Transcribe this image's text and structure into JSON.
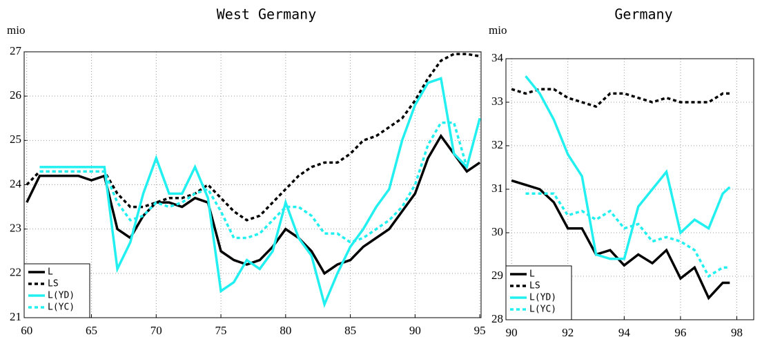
{
  "chart_data": [
    {
      "type": "line",
      "title": "West Germany",
      "y_label": "mio",
      "x": [
        60,
        61,
        62,
        63,
        64,
        65,
        66,
        67,
        68,
        69,
        70,
        71,
        72,
        73,
        74,
        75,
        76,
        77,
        78,
        79,
        80,
        81,
        82,
        83,
        84,
        85,
        86,
        87,
        88,
        89,
        90,
        91,
        92,
        93,
        94,
        95
      ],
      "series": [
        {
          "name": "L",
          "color": "#000000",
          "dash": false,
          "values": [
            23.6,
            24.2,
            24.2,
            24.2,
            24.2,
            24.1,
            24.2,
            23.0,
            22.8,
            23.3,
            23.6,
            23.6,
            23.5,
            23.7,
            23.6,
            22.5,
            22.3,
            22.2,
            22.3,
            22.6,
            23.0,
            22.8,
            22.5,
            22.0,
            22.2,
            22.3,
            22.6,
            22.8,
            23.0,
            23.4,
            23.8,
            24.6,
            25.1,
            24.7,
            24.3,
            24.5
          ]
        },
        {
          "name": "LS",
          "color": "#000000",
          "dash": true,
          "values": [
            24.0,
            24.3,
            24.3,
            24.3,
            24.3,
            24.3,
            24.3,
            23.8,
            23.5,
            23.5,
            23.6,
            23.7,
            23.7,
            23.8,
            24.0,
            23.7,
            23.4,
            23.2,
            23.3,
            23.6,
            23.9,
            24.2,
            24.4,
            24.5,
            24.5,
            24.7,
            25.0,
            25.1,
            25.3,
            25.5,
            25.9,
            26.4,
            26.8,
            26.95,
            26.95,
            26.9
          ]
        },
        {
          "name": "L(YD)",
          "color": "#22f0f0",
          "dash": false,
          "values": [
            null,
            24.4,
            24.4,
            24.4,
            24.4,
            24.4,
            24.4,
            22.1,
            22.7,
            23.8,
            24.6,
            23.8,
            23.8,
            24.4,
            23.7,
            21.6,
            21.8,
            22.3,
            22.1,
            22.5,
            23.6,
            22.8,
            22.4,
            21.3,
            22.0,
            22.6,
            23.0,
            23.5,
            23.9,
            25.0,
            25.8,
            26.3,
            26.4,
            24.7,
            24.4,
            25.5
          ]
        },
        {
          "name": "L(YC)",
          "color": "#22f0f0",
          "dash": true,
          "values": [
            null,
            24.3,
            24.3,
            24.3,
            24.3,
            24.3,
            24.3,
            23.6,
            23.2,
            23.3,
            23.6,
            23.5,
            23.6,
            23.8,
            23.9,
            23.4,
            22.8,
            22.8,
            22.9,
            23.2,
            23.5,
            23.5,
            23.3,
            22.9,
            22.9,
            22.7,
            22.8,
            23.0,
            23.2,
            23.5,
            24.0,
            24.9,
            25.4,
            25.4,
            24.4,
            null
          ]
        }
      ],
      "xlim": [
        59.8,
        95.1
      ],
      "xticks": [
        60,
        65,
        70,
        75,
        80,
        85,
        90,
        95
      ],
      "ylim": [
        21,
        27
      ],
      "yticks": [
        21,
        22,
        23,
        24,
        25,
        26,
        27
      ],
      "grid": true,
      "legend": "lower-left"
    },
    {
      "type": "line",
      "title": "Germany",
      "y_label": "mio",
      "x": [
        90,
        90.5,
        91,
        91.5,
        92,
        92.5,
        93,
        93.5,
        94,
        94.5,
        95,
        95.5,
        96,
        96.5,
        97,
        97.5,
        97.75
      ],
      "series": [
        {
          "name": "L",
          "color": "#000000",
          "dash": false,
          "values": [
            31.2,
            31.1,
            31.0,
            30.7,
            30.1,
            30.1,
            29.5,
            29.6,
            29.25,
            29.5,
            29.3,
            29.6,
            28.95,
            29.2,
            28.5,
            28.85,
            28.85
          ]
        },
        {
          "name": "LS",
          "color": "#000000",
          "dash": true,
          "values": [
            33.3,
            33.2,
            33.3,
            33.3,
            33.1,
            33.0,
            32.9,
            33.2,
            33.2,
            33.1,
            33.0,
            33.1,
            33.0,
            33.0,
            33.0,
            33.2,
            33.2
          ]
        },
        {
          "name": "L(YD)",
          "color": "#22f0f0",
          "dash": false,
          "values": [
            null,
            33.6,
            33.2,
            32.6,
            31.8,
            31.3,
            29.5,
            29.4,
            29.4,
            30.6,
            31.0,
            31.4,
            30.0,
            30.3,
            30.1,
            30.9,
            31.05
          ]
        },
        {
          "name": "L(YC)",
          "color": "#22f0f0",
          "dash": true,
          "values": [
            null,
            30.9,
            30.9,
            30.9,
            30.4,
            30.5,
            30.3,
            30.5,
            30.1,
            30.2,
            29.8,
            29.9,
            29.8,
            29.6,
            29.0,
            29.2,
            29.2
          ]
        }
      ],
      "xlim": [
        89.8,
        98.6
      ],
      "xticks": [
        90,
        92,
        94,
        96,
        98
      ],
      "ylim": [
        28,
        34
      ],
      "yticks": [
        28,
        29,
        30,
        31,
        32,
        33,
        34
      ],
      "grid": true,
      "legend": "lower-left"
    }
  ]
}
